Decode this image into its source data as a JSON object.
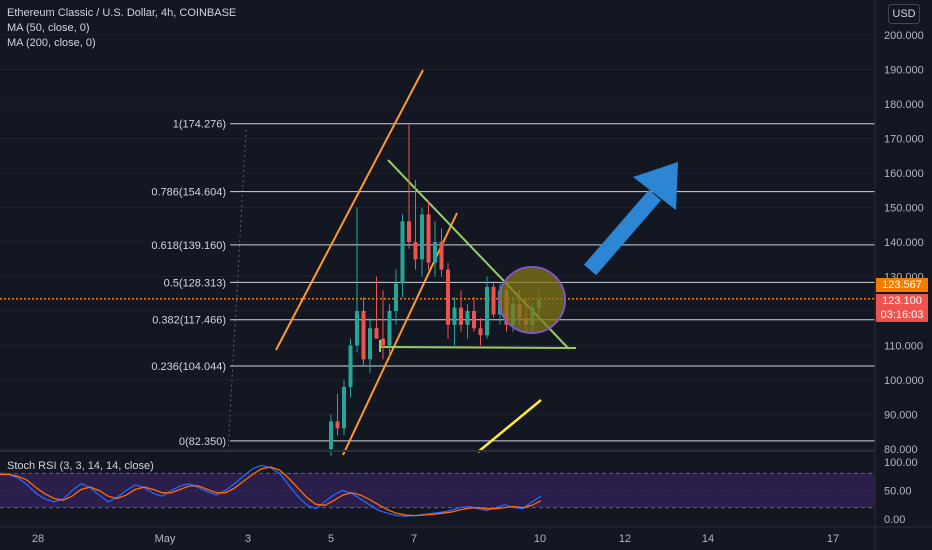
{
  "header": {
    "title": "Ethereum Classic / U.S. Dollar, 4h, COINBASE",
    "indicators": [
      "MA (50, close, 0)",
      "MA (200, close, 0)"
    ],
    "stoch_label": "Stoch RSI (3, 3, 14, 14, close)",
    "currency_button": "USD"
  },
  "price_tags": {
    "orange_value": "123.567",
    "red_value": "123.100",
    "red_countdown": "03:16:03"
  },
  "colors": {
    "background": "#131722",
    "grid": "#1e222d",
    "up": "#26a69a",
    "down": "#ef5350",
    "orange_line": "#f57c00",
    "channel": "#ff9a2e",
    "triangle": "#9ccc65",
    "circle_fill": "#827717",
    "circle_stroke": "#7e57c2",
    "arrow": "#2d86d4",
    "yellow_line": "#ffeb3b",
    "stoch_band": "#2a1f4a",
    "stoch_k": "#2962ff",
    "stoch_d": "#ff6d00"
  },
  "chart_data": {
    "type": "candlestick",
    "price_axis": {
      "labels": [
        "200.000",
        "190.000",
        "180.000",
        "170.000",
        "160.000",
        "150.000",
        "140.000",
        "130.000",
        "120.000",
        "110.000",
        "100.000",
        "90.000",
        "80.000"
      ],
      "ylim": [
        80,
        200
      ]
    },
    "fib_levels": [
      {
        "label": "1(174.276)",
        "value": 174.276
      },
      {
        "label": "0.786(154.604)",
        "value": 154.604
      },
      {
        "label": "0.618(139.160)",
        "value": 139.16
      },
      {
        "label": "0.5(128.313)",
        "value": 128.313
      },
      {
        "label": "0.382(117.466)",
        "value": 117.466
      },
      {
        "label": "0.236(104.044)",
        "value": 104.044
      },
      {
        "label": "0(82.350)",
        "value": 82.35
      }
    ],
    "time_axis": [
      "28",
      "May",
      "3",
      "5",
      "7",
      "10",
      "12",
      "14",
      "17"
    ],
    "current_price": 123.1,
    "orange_line_price": 123.567,
    "candles": [
      {
        "o": 80,
        "h": 90,
        "l": 78,
        "c": 88
      },
      {
        "o": 88,
        "h": 96,
        "l": 84,
        "c": 86
      },
      {
        "o": 86,
        "h": 100,
        "l": 84,
        "c": 98
      },
      {
        "o": 98,
        "h": 112,
        "l": 95,
        "c": 110
      },
      {
        "o": 110,
        "h": 150,
        "l": 108,
        "c": 120
      },
      {
        "o": 120,
        "h": 124,
        "l": 104,
        "c": 106
      },
      {
        "o": 106,
        "h": 118,
        "l": 102,
        "c": 115
      },
      {
        "o": 115,
        "h": 130,
        "l": 112,
        "c": 112
      },
      {
        "o": 112,
        "h": 126,
        "l": 106,
        "c": 110
      },
      {
        "o": 110,
        "h": 122,
        "l": 106,
        "c": 120
      },
      {
        "o": 120,
        "h": 132,
        "l": 116,
        "c": 128
      },
      {
        "o": 128,
        "h": 148,
        "l": 124,
        "c": 146
      },
      {
        "o": 146,
        "h": 174,
        "l": 138,
        "c": 140
      },
      {
        "o": 140,
        "h": 158,
        "l": 132,
        "c": 135
      },
      {
        "o": 135,
        "h": 150,
        "l": 130,
        "c": 148
      },
      {
        "o": 148,
        "h": 152,
        "l": 132,
        "c": 134
      },
      {
        "o": 134,
        "h": 146,
        "l": 130,
        "c": 140
      },
      {
        "o": 140,
        "h": 144,
        "l": 130,
        "c": 132
      },
      {
        "o": 132,
        "h": 134,
        "l": 112,
        "c": 116
      },
      {
        "o": 116,
        "h": 124,
        "l": 110,
        "c": 121
      },
      {
        "o": 121,
        "h": 126,
        "l": 114,
        "c": 116
      },
      {
        "o": 116,
        "h": 122,
        "l": 112,
        "c": 120
      },
      {
        "o": 120,
        "h": 124,
        "l": 114,
        "c": 115
      },
      {
        "o": 115,
        "h": 118,
        "l": 110,
        "c": 113
      },
      {
        "o": 113,
        "h": 130,
        "l": 112,
        "c": 127
      },
      {
        "o": 127,
        "h": 128,
        "l": 118,
        "c": 119
      },
      {
        "o": 119,
        "h": 128,
        "l": 116,
        "c": 126
      },
      {
        "o": 126,
        "h": 127,
        "l": 114,
        "c": 116
      },
      {
        "o": 116,
        "h": 124,
        "l": 114,
        "c": 122
      },
      {
        "o": 122,
        "h": 126,
        "l": 116,
        "c": 118
      },
      {
        "o": 118,
        "h": 124,
        "l": 114,
        "c": 116
      },
      {
        "o": 116,
        "h": 122,
        "l": 114,
        "c": 121
      },
      {
        "o": 121,
        "h": 126,
        "l": 118,
        "c": 123.1
      }
    ],
    "stoch_rsi": {
      "axis": [
        "100.00",
        "50.00",
        "0.00"
      ],
      "ylim": [
        0,
        100
      ],
      "k": [
        80,
        78,
        72,
        60,
        45,
        35,
        30,
        35,
        50,
        62,
        55,
        42,
        30,
        38,
        50,
        60,
        55,
        45,
        40,
        50,
        58,
        62,
        55,
        48,
        42,
        50,
        62,
        75,
        88,
        94,
        90,
        80,
        60,
        40,
        25,
        18,
        30,
        42,
        50,
        45,
        35,
        25,
        15,
        10,
        6,
        5,
        6,
        8,
        10,
        12,
        15,
        20,
        22,
        18,
        15,
        20,
        25,
        20,
        18,
        30,
        40
      ],
      "d": [
        78,
        78,
        75,
        68,
        55,
        44,
        36,
        33,
        40,
        52,
        56,
        50,
        40,
        36,
        42,
        52,
        56,
        52,
        46,
        46,
        52,
        58,
        58,
        52,
        46,
        46,
        54,
        66,
        78,
        88,
        91,
        86,
        72,
        55,
        38,
        26,
        24,
        32,
        42,
        46,
        42,
        34,
        25,
        16,
        10,
        7,
        6,
        7,
        8,
        10,
        12,
        16,
        19,
        20,
        18,
        18,
        20,
        22,
        20,
        24,
        32
      ]
    },
    "drawings": {
      "channel_lines": [
        "up-channel-upper",
        "up-channel-lower"
      ],
      "triangle": "descending-triangle",
      "circle": "highlight-circle",
      "arrow": "blue-up-arrow",
      "yellow_line": "yellow-trendline"
    }
  }
}
